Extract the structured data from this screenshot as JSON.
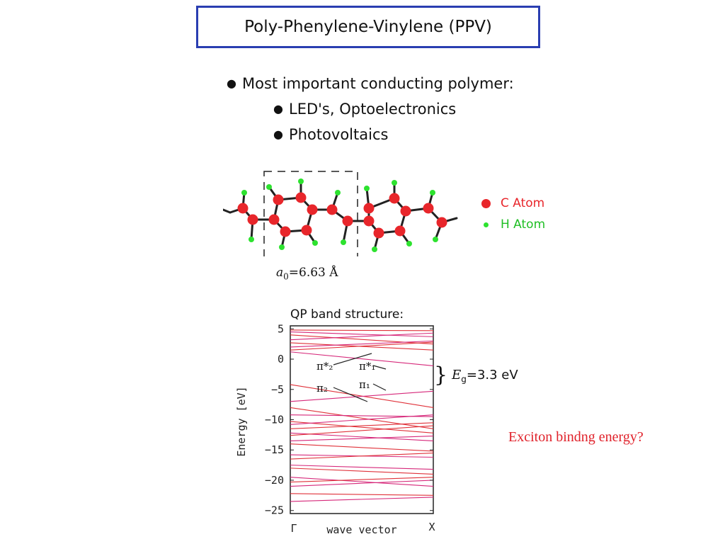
{
  "slide": {
    "title": "Poly-Phenylene-Vinylene (PPV)",
    "bullets": [
      {
        "text": "Most important conducting polymer:",
        "level": 1
      },
      {
        "text": "LED's, Optoelectronics",
        "level": 2
      },
      {
        "text": "Photovoltaics",
        "level": 2
      }
    ],
    "legend": {
      "c_atom": {
        "label": "C Atom",
        "color": "#e8262b"
      },
      "h_atom": {
        "label": "H Atom",
        "color": "#2de22f"
      }
    },
    "lattice": {
      "symbol": "a",
      "subscript": "0",
      "value": "=6.63 Å"
    },
    "question": "Exciton bindng energy?"
  },
  "chart_data": {
    "type": "line",
    "title": "QP band structure:",
    "xlabel": "wave vector",
    "ylabel": "Energy [eV]",
    "x_ticks": [
      "Γ",
      "X"
    ],
    "y_ticks": [
      5,
      0,
      -5,
      -10,
      -15,
      -20,
      -25
    ],
    "ylim": [
      -25.5,
      5.5
    ],
    "gap_annotation": {
      "symbol": "E",
      "subscript": "g",
      "value": "=3.3 eV"
    },
    "band_labels": [
      "π*₂",
      "π*₁",
      "π₂",
      "π₁"
    ],
    "series": [
      {
        "values": [
          4.8,
          4.7
        ]
      },
      {
        "values": [
          4.5,
          3.7
        ]
      },
      {
        "values": [
          4.0,
          2.5
        ]
      },
      {
        "values": [
          3.2,
          4.3
        ]
      },
      {
        "values": [
          2.7,
          1.5
        ]
      },
      {
        "values": [
          2.0,
          3.0
        ]
      },
      {
        "values": [
          1.5,
          2.8
        ]
      },
      {
        "values": [
          1.2,
          -1.1
        ]
      },
      {
        "values": [
          -4.2,
          -8.0
        ]
      },
      {
        "values": [
          -7.0,
          -5.3
        ]
      },
      {
        "values": [
          -8.0,
          -11.5
        ]
      },
      {
        "values": [
          -9.2,
          -9.5
        ]
      },
      {
        "values": [
          -10.3,
          -12.2
        ]
      },
      {
        "values": [
          -10.8,
          -9.2
        ]
      },
      {
        "values": [
          -11.5,
          -10.5
        ]
      },
      {
        "values": [
          -12.2,
          -13.5
        ]
      },
      {
        "values": [
          -12.6,
          -11.0
        ]
      },
      {
        "values": [
          -13.5,
          -12.7
        ]
      },
      {
        "values": [
          -14.0,
          -15.2
        ]
      },
      {
        "values": [
          -15.8,
          -16.2
        ]
      },
      {
        "values": [
          -16.5,
          -15.5
        ]
      },
      {
        "values": [
          -17.5,
          -18.2
        ]
      },
      {
        "values": [
          -18.0,
          -19.0
        ]
      },
      {
        "values": [
          -19.5,
          -21.0
        ]
      },
      {
        "values": [
          -20.3,
          -19.5
        ]
      },
      {
        "values": [
          -21.0,
          -20.0
        ]
      },
      {
        "values": [
          -22.2,
          -22.5
        ]
      },
      {
        "values": [
          -23.5,
          -22.8
        ]
      }
    ]
  }
}
